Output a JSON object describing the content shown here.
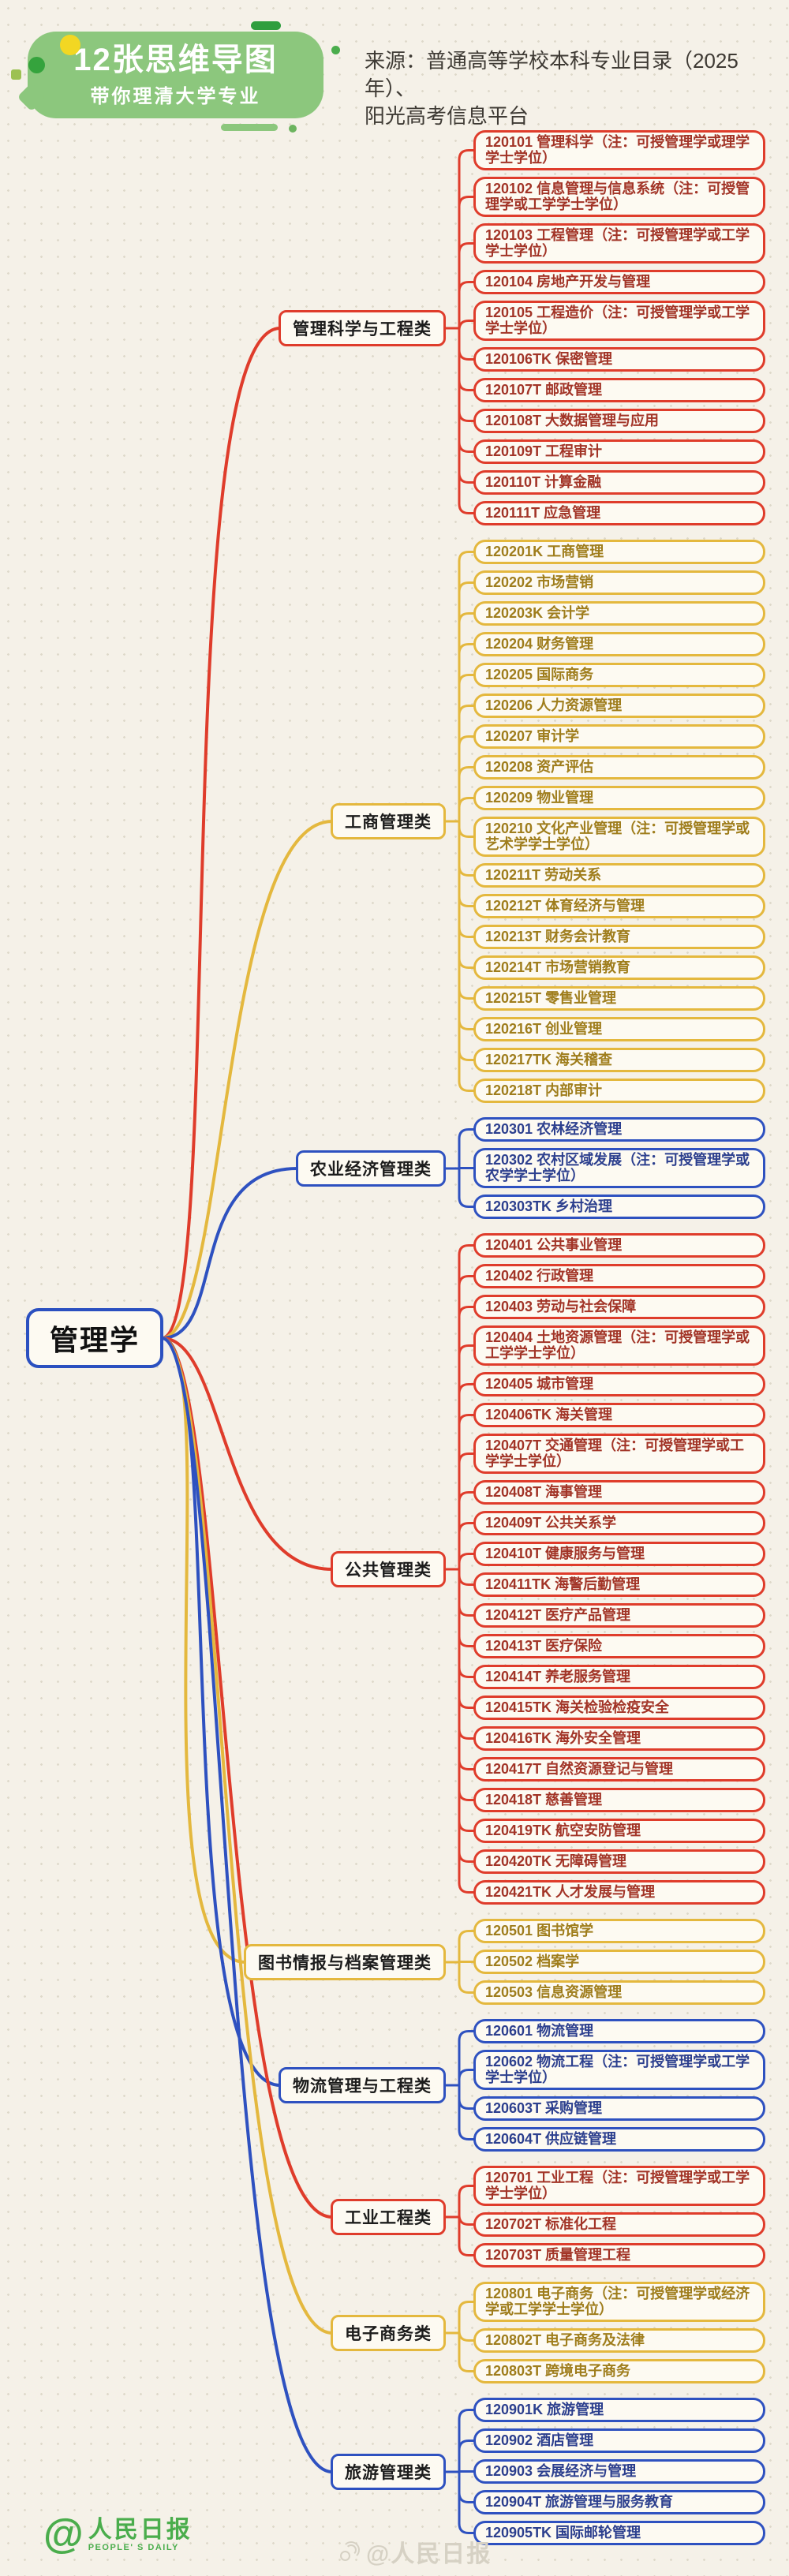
{
  "header": {
    "badge_line1": "12张思维导图",
    "badge_line2": "带你理清大学专业",
    "source_line1": "来源：普通高等学校本科专业目录（2025年）、",
    "source_line2": "阳光高考信息平台"
  },
  "root_label": "管理学",
  "palette": {
    "red": {
      "line": "#df3c2b",
      "text": "#a23427"
    },
    "yellow": {
      "line": "#e4b83e",
      "text": "#9f7d1c"
    },
    "blue": {
      "line": "#2e51c0",
      "text": "#2c3f8e"
    }
  },
  "branches": [
    {
      "label": "管理科学与工程类",
      "color": "red",
      "items": [
        "120101 管理科学（注：可授管理学或理学学士学位）",
        "120102 信息管理与信息系统（注：可授管理学或工学学士学位）",
        "120103 工程管理（注：可授管理学或工学学士学位）",
        "120104 房地产开发与管理",
        "120105 工程造价（注：可授管理学或工学学士学位）",
        "120106TK 保密管理",
        "120107T 邮政管理",
        "120108T 大数据管理与应用",
        "120109T 工程审计",
        "120110T 计算金融",
        "120111T 应急管理"
      ]
    },
    {
      "label": "工商管理类",
      "color": "yellow",
      "items": [
        "120201K 工商管理",
        "120202 市场营销",
        "120203K 会计学",
        "120204 财务管理",
        "120205 国际商务",
        "120206 人力资源管理",
        "120207 审计学",
        "120208 资产评估",
        "120209 物业管理",
        "120210 文化产业管理（注：可授管理学或艺术学学士学位）",
        "120211T 劳动关系",
        "120212T 体育经济与管理",
        "120213T 财务会计教育",
        "120214T 市场营销教育",
        "120215T 零售业管理",
        "120216T 创业管理",
        "120217TK 海关稽查",
        "120218T 内部审计"
      ]
    },
    {
      "label": "农业经济管理类",
      "color": "blue",
      "items": [
        "120301 农林经济管理",
        "120302 农村区域发展（注：可授管理学或农学学士学位）",
        "120303TK 乡村治理"
      ]
    },
    {
      "label": "公共管理类",
      "color": "red",
      "items": [
        "120401 公共事业管理",
        "120402 行政管理",
        "120403 劳动与社会保障",
        "120404 土地资源管理（注：可授管理学或工学学士学位）",
        "120405 城市管理",
        "120406TK 海关管理",
        "120407T 交通管理（注：可授管理学或工学学士学位）",
        "120408T 海事管理",
        "120409T 公共关系学",
        "120410T 健康服务与管理",
        "120411TK 海警后勤管理",
        "120412T 医疗产品管理",
        "120413T 医疗保险",
        "120414T 养老服务管理",
        "120415TK 海关检验检疫安全",
        "120416TK 海外安全管理",
        "120417T 自然资源登记与管理",
        "120418T 慈善管理",
        "120419TK 航空安防管理",
        "120420TK 无障碍管理",
        "120421TK 人才发展与管理"
      ]
    },
    {
      "label": "图书情报与档案管理类",
      "color": "yellow",
      "items": [
        "120501 图书馆学",
        "120502 档案学",
        "120503 信息资源管理"
      ]
    },
    {
      "label": "物流管理与工程类",
      "color": "blue",
      "items": [
        "120601 物流管理",
        "120602 物流工程（注：可授管理学或工学学士学位）",
        "120603T 采购管理",
        "120604T 供应链管理"
      ]
    },
    {
      "label": "工业工程类",
      "color": "red",
      "items": [
        "120701 工业工程（注：可授管理学或工学学士学位）",
        "120702T 标准化工程",
        "120703T 质量管理工程"
      ]
    },
    {
      "label": "电子商务类",
      "color": "yellow",
      "items": [
        "120801 电子商务（注：可授管理学或经济学或工学学士学位）",
        "120802T 电子商务及法律",
        "120803T 跨境电子商务"
      ]
    },
    {
      "label": "旅游管理类",
      "color": "blue",
      "items": [
        "120901K 旅游管理",
        "120902 酒店管理",
        "120903 会展经济与管理",
        "120904T 旅游管理与服务教育",
        "120905TK 国际邮轮管理"
      ]
    }
  ],
  "footer": {
    "logo_at": "@",
    "logo_title": "人民日报",
    "logo_subtitle": "PEOPLE' S DAILY",
    "watermark": "@人民日报"
  }
}
